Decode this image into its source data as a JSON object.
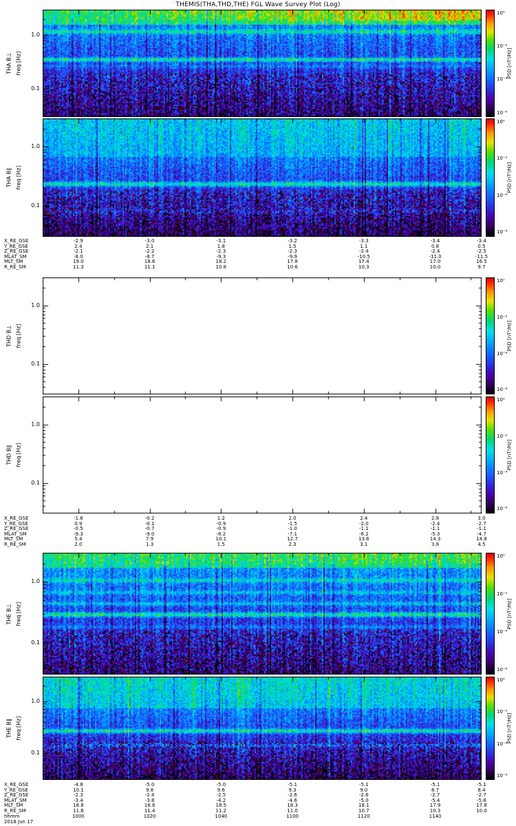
{
  "chart_data": {
    "type": "heatmap",
    "title": "THEMIS(THA,THD,THE) FGL Wave Survey Plot (Log)",
    "freq_ticks": [
      "1.0",
      "0.1"
    ],
    "freq_range_hz": [
      0.03,
      3
    ],
    "colorbar": {
      "label": "PSD [nT²/Hz]",
      "ticks": [
        "10⁰",
        "10⁻²",
        "10⁻⁴",
        "10⁻⁶"
      ]
    },
    "colormap": [
      {
        "t": 0.0,
        "c": "#000006"
      },
      {
        "t": 0.08,
        "c": "#30005a"
      },
      {
        "t": 0.16,
        "c": "#4b00a8"
      },
      {
        "t": 0.24,
        "c": "#2e2bd8"
      },
      {
        "t": 0.34,
        "c": "#1565ff"
      },
      {
        "t": 0.44,
        "c": "#00a4ff"
      },
      {
        "t": 0.54,
        "c": "#00e0e8"
      },
      {
        "t": 0.63,
        "c": "#00d878"
      },
      {
        "t": 0.72,
        "c": "#55e000"
      },
      {
        "t": 0.8,
        "c": "#e8e000"
      },
      {
        "t": 0.88,
        "c": "#ff9800"
      },
      {
        "t": 0.95,
        "c": "#ff3000"
      },
      {
        "t": 1.0,
        "c": "#d80000"
      }
    ],
    "speckle_color": "#6e0008",
    "panels": [
      {
        "id": "tha-bperp",
        "label1": "THA B⊥",
        "label2": "freq [Hz]",
        "blank": false,
        "profile": {
          "topFrac": 0.13,
          "topVal": 0.6,
          "midVal": 0.41,
          "botVal": 0.12,
          "topRightBoost": 0.2,
          "speckleFrac": 0.58,
          "speckleProb": 0.05,
          "bands": [
            {
              "c": 0.2,
              "w": 0.02,
              "v": 0.22
            },
            {
              "c": 0.46,
              "w": 0.018,
              "v": 0.34
            },
            {
              "c": 0.52,
              "w": 0.02,
              "v": 0.1
            }
          ]
        }
      },
      {
        "id": "tha-bpar",
        "label1": "THA B∥",
        "label2": "freq [Hz]",
        "blank": false,
        "profile": {
          "topFrac": 0.32,
          "topVal": 0.46,
          "midVal": 0.38,
          "botVal": 0.08,
          "topRightBoost": 0.0,
          "speckleFrac": 0.6,
          "speckleProb": 0.05,
          "bands": [
            {
              "c": 0.55,
              "w": 0.02,
              "v": 0.32
            },
            {
              "c": 0.78,
              "w": 0.02,
              "v": 0.08
            }
          ]
        }
      },
      {
        "id": "thd-bperp",
        "label1": "THD B⊥",
        "label2": "freq [Hz]",
        "blank": true
      },
      {
        "id": "thd-bpar",
        "label1": "THD B∥",
        "label2": "freq [Hz]",
        "blank": true
      },
      {
        "id": "the-bperp",
        "label1": "THE B⊥",
        "label2": "freq [Hz]",
        "blank": false,
        "profile": {
          "topFrac": 0.12,
          "topVal": 0.6,
          "midVal": 0.43,
          "botVal": 0.12,
          "topRightBoost": 0.05,
          "speckleFrac": 0.62,
          "speckleProb": 0.05,
          "bands": [
            {
              "c": 0.22,
              "w": 0.016,
              "v": 0.18
            },
            {
              "c": 0.32,
              "w": 0.016,
              "v": 0.14
            },
            {
              "c": 0.41,
              "w": 0.015,
              "v": 0.18
            },
            {
              "c": 0.5,
              "w": 0.018,
              "v": 0.34
            },
            {
              "c": 0.6,
              "w": 0.015,
              "v": 0.12
            }
          ]
        }
      },
      {
        "id": "the-bpar",
        "label1": "THE B∥",
        "label2": "freq [Hz]",
        "blank": false,
        "profile": {
          "topFrac": 0.3,
          "topVal": 0.5,
          "midVal": 0.39,
          "botVal": 0.08,
          "topRightBoost": 0.0,
          "speckleFrac": 0.62,
          "speckleProb": 0.05,
          "bands": [
            {
              "c": 0.52,
              "w": 0.02,
              "v": 0.32
            },
            {
              "c": 0.66,
              "w": 0.016,
              "v": 0.12
            }
          ]
        }
      }
    ],
    "ephemeris": [
      {
        "spacecraft": "THA",
        "rows": [
          {
            "label": "X_RE_GSE",
            "values": [
              "-2.9",
              "-3.0",
              "-3.1",
              "-3.2",
              "-3.3",
              "-3.4",
              "-3.4"
            ]
          },
          {
            "label": "Y_RE_GSE",
            "values": [
              "2.4",
              "2.1",
              "1.8",
              "1.5",
              "1.1",
              "0.8",
              "0.5"
            ]
          },
          {
            "label": "Z_RE_GSE",
            "values": [
              "-2.1",
              "-2.2",
              "-2.3",
              "-2.3",
              "-2.4",
              "-2.4",
              "-2.5"
            ]
          },
          {
            "label": "MLAT_SM",
            "values": [
              "-8.0",
              "-8.7",
              "-9.3",
              "-9.9",
              "-10.5",
              "-11.0",
              "-11.5"
            ]
          },
          {
            "label": "MLT_SM",
            "values": [
              "19.0",
              "18.6",
              "18.2",
              "17.8",
              "17.4",
              "17.0",
              "16.5"
            ]
          },
          {
            "label": "R_RE_SM",
            "values": [
              "11.3",
              "11.1",
              "10.8",
              "10.6",
              "10.3",
              "10.0",
              "9.7"
            ]
          }
        ]
      },
      {
        "spacecraft": "THD",
        "rows": [
          {
            "label": "X_RE_GSE",
            "values": [
              "-1.6",
              "-0.2",
              "1.2",
              "2.0",
              "2.4",
              "2.8",
              "3.0"
            ]
          },
          {
            "label": "Y_RE_GSE",
            "values": [
              "0.9",
              "-0.1",
              "-0.9",
              "-1.5",
              "-2.0",
              "-2.4",
              "-2.7"
            ]
          },
          {
            "label": "Z_RE_GSE",
            "values": [
              "-0.5",
              "-0.7",
              "-0.9",
              "-1.0",
              "-1.1",
              "-1.1",
              "-1.1"
            ]
          },
          {
            "label": "MLAT_SM",
            "values": [
              "-9.3",
              "-9.0",
              "-8.2",
              "-7.1",
              "-6.2",
              "-5.3",
              "-4.7"
            ]
          },
          {
            "label": "MLT_SM",
            "values": [
              "5.4",
              "7.9",
              "10.1",
              "12.7",
              "13.6",
              "14.3",
              "14.8"
            ]
          },
          {
            "label": "R_RE_SM",
            "values": [
              "2.0",
              "1.3",
              "1.5",
              "2.3",
              "3.1",
              "3.8",
              "4.5"
            ]
          }
        ]
      },
      {
        "spacecraft": "THE",
        "rows": [
          {
            "label": "X_RE_GSE",
            "values": [
              "-4.8",
              "-5.0",
              "-5.0",
              "-5.1",
              "-5.1",
              "-5.1",
              "-5.1"
            ]
          },
          {
            "label": "Y_RE_GSE",
            "values": [
              "10.1",
              "9.8",
              "9.6",
              "9.3",
              "9.0",
              "8.7",
              "8.4"
            ]
          },
          {
            "label": "Z_RE_GSE",
            "values": [
              "-2.3",
              "-2.4",
              "-2.5",
              "-2.6",
              "-2.6",
              "-2.7",
              "-2.7"
            ]
          },
          {
            "label": "MLAT_SM",
            "values": [
              "-3.4",
              "-3.8",
              "-4.2",
              "-4.6",
              "-5.0",
              "-5.4",
              "-5.8"
            ]
          },
          {
            "label": "MLT_SM",
            "values": [
              "18.8",
              "18.6",
              "18.5",
              "18.3",
              "18.1",
              "17.9",
              "17.8"
            ]
          },
          {
            "label": "R_RE_SM",
            "values": [
              "11.6",
              "11.4",
              "11.2",
              "11.0",
              "10.7",
              "10.3",
              "10.0"
            ]
          }
        ]
      }
    ],
    "time_axis": {
      "label": "hhmm",
      "ticks": [
        "1000",
        "1020",
        "1040",
        "1100",
        "1120",
        "1140"
      ],
      "date": "2018 Jun 17"
    }
  }
}
